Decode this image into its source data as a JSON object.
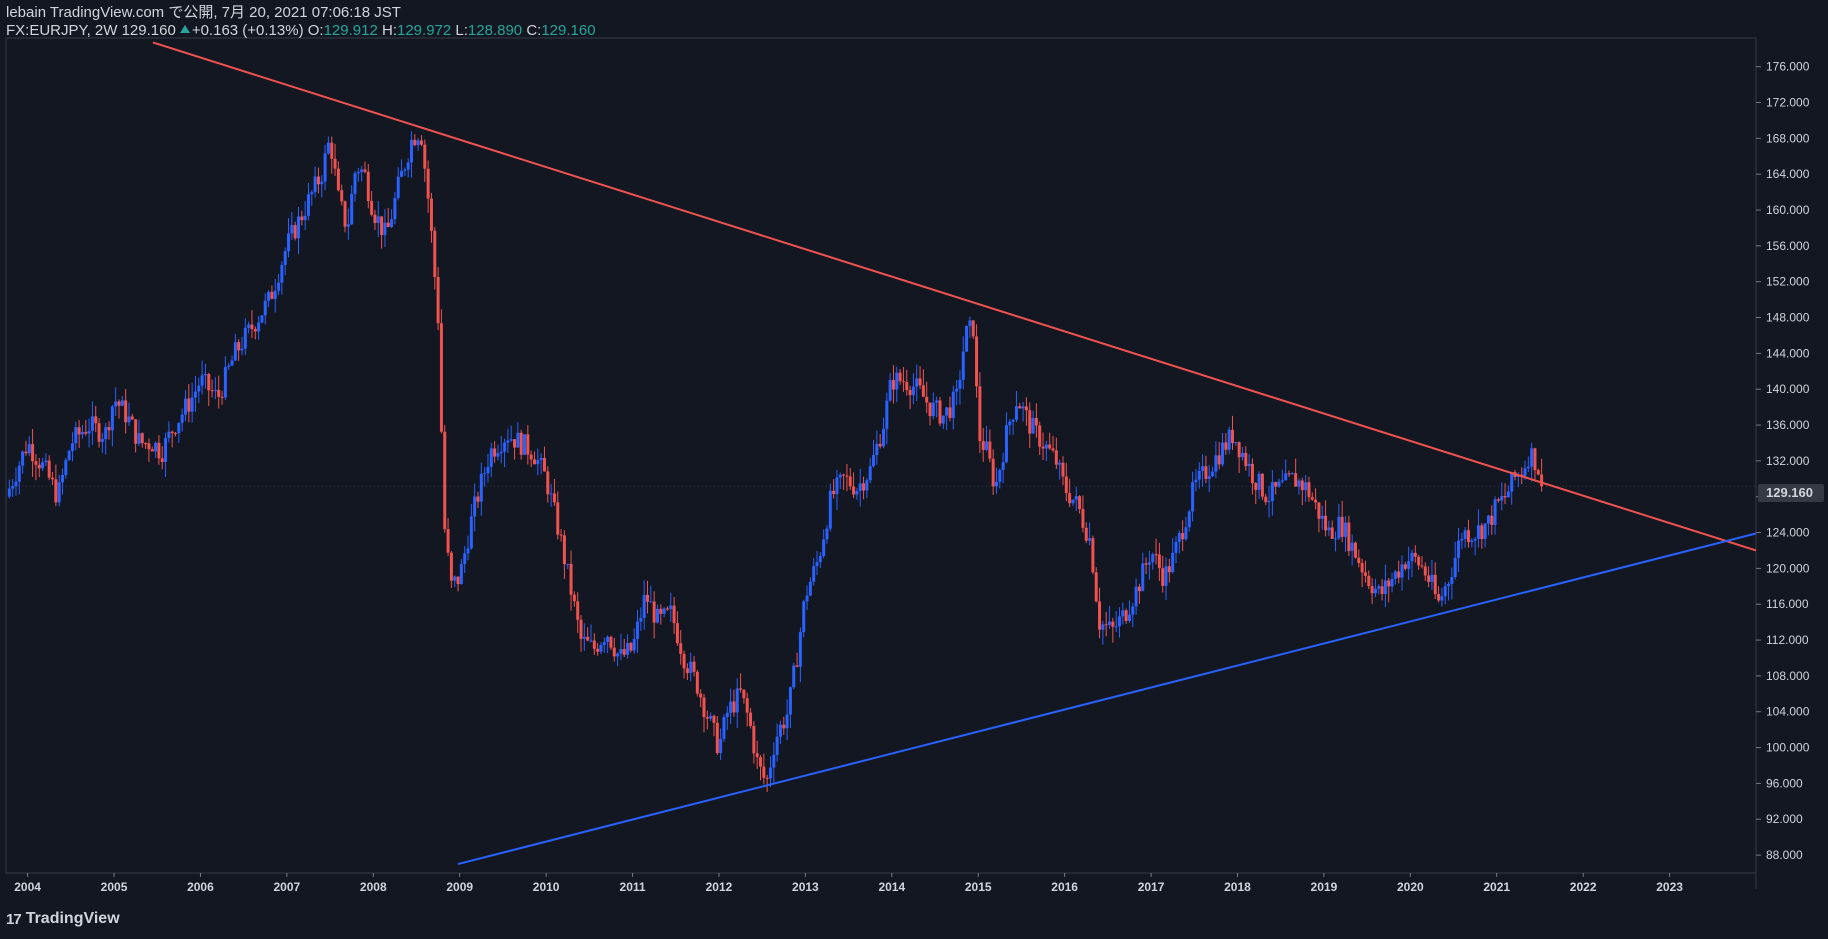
{
  "header": {
    "publisher": "lebain TradingView.com で公開, 7月 20, 2021 07:06:18 JST",
    "symbol": "FX:EURJPY, 2W",
    "last": "129.160",
    "change": "+0.163 (+0.13%)",
    "o_label": "O:",
    "o_value": "129.912",
    "h_label": "H:",
    "h_value": "129.972",
    "l_label": "L:",
    "l_value": "128.890",
    "c_label": "C:",
    "c_value": "129.160"
  },
  "price_badge": "129.160",
  "footer": {
    "logo_text": "TradingView",
    "logo_mark": "17"
  },
  "colors": {
    "bg": "#131722",
    "up": "#2962ff",
    "down": "#ef5350",
    "grid": "#2a2e39",
    "text": "#d1d4dc",
    "axis": "#787b86"
  },
  "chart_data": {
    "type": "candlestick",
    "title": "FX:EURJPY, 2W",
    "x_range": [
      2003.75,
      2024.0
    ],
    "y_range": [
      86.0,
      179.2
    ],
    "x_ticks": [
      2004,
      2005,
      2006,
      2007,
      2008,
      2009,
      2010,
      2011,
      2012,
      2013,
      2014,
      2015,
      2016,
      2017,
      2018,
      2019,
      2020,
      2021,
      2022,
      2023
    ],
    "y_ticks": [
      "88.000",
      "92.000",
      "96.000",
      "100.000",
      "104.000",
      "108.000",
      "112.000",
      "116.000",
      "120.000",
      "124.000",
      "128.000",
      "132.000",
      "136.000",
      "140.000",
      "144.000",
      "148.000",
      "152.000",
      "156.000",
      "160.000",
      "164.000",
      "168.000",
      "172.000",
      "176.000"
    ],
    "current_price": 129.16,
    "closes": [
      [
        2003.75,
        128
      ],
      [
        2004.0,
        134
      ],
      [
        2004.2,
        131
      ],
      [
        2004.35,
        128
      ],
      [
        2004.5,
        134
      ],
      [
        2004.7,
        136
      ],
      [
        2004.9,
        135
      ],
      [
        2005.0,
        139
      ],
      [
        2005.15,
        137
      ],
      [
        2005.3,
        134
      ],
      [
        2005.45,
        134
      ],
      [
        2005.55,
        133
      ],
      [
        2005.7,
        136
      ],
      [
        2005.9,
        139
      ],
      [
        2006.0,
        141
      ],
      [
        2006.2,
        139
      ],
      [
        2006.4,
        144
      ],
      [
        2006.6,
        147
      ],
      [
        2006.8,
        150
      ],
      [
        2007.0,
        156
      ],
      [
        2007.2,
        160
      ],
      [
        2007.4,
        164
      ],
      [
        2007.5,
        168
      ],
      [
        2007.6,
        161
      ],
      [
        2007.7,
        158
      ],
      [
        2007.8,
        165
      ],
      [
        2007.9,
        164
      ],
      [
        2008.0,
        160
      ],
      [
        2008.15,
        157
      ],
      [
        2008.3,
        163
      ],
      [
        2008.45,
        168
      ],
      [
        2008.55,
        169
      ],
      [
        2008.65,
        160
      ],
      [
        2008.75,
        148
      ],
      [
        2008.82,
        125
      ],
      [
        2008.9,
        118
      ],
      [
        2009.0,
        119
      ],
      [
        2009.15,
        126
      ],
      [
        2009.35,
        133
      ],
      [
        2009.55,
        135
      ],
      [
        2009.7,
        134
      ],
      [
        2009.85,
        133
      ],
      [
        2010.0,
        130
      ],
      [
        2010.15,
        124
      ],
      [
        2010.3,
        117
      ],
      [
        2010.4,
        112
      ],
      [
        2010.55,
        111
      ],
      [
        2010.7,
        113
      ],
      [
        2010.85,
        110
      ],
      [
        2011.0,
        111
      ],
      [
        2011.15,
        117
      ],
      [
        2011.3,
        114
      ],
      [
        2011.45,
        115
      ],
      [
        2011.6,
        110
      ],
      [
        2011.75,
        107
      ],
      [
        2011.85,
        104
      ],
      [
        2012.0,
        100
      ],
      [
        2012.1,
        104
      ],
      [
        2012.25,
        106
      ],
      [
        2012.35,
        103
      ],
      [
        2012.45,
        98
      ],
      [
        2012.55,
        96
      ],
      [
        2012.65,
        101
      ],
      [
        2012.8,
        104
      ],
      [
        2012.9,
        110
      ],
      [
        2013.0,
        117
      ],
      [
        2013.15,
        121
      ],
      [
        2013.3,
        128
      ],
      [
        2013.45,
        130
      ],
      [
        2013.6,
        129
      ],
      [
        2013.75,
        131
      ],
      [
        2013.9,
        136
      ],
      [
        2014.0,
        141
      ],
      [
        2014.15,
        141
      ],
      [
        2014.3,
        140
      ],
      [
        2014.45,
        138
      ],
      [
        2014.6,
        137
      ],
      [
        2014.75,
        139
      ],
      [
        2014.85,
        146
      ],
      [
        2014.95,
        147
      ],
      [
        2015.0,
        135
      ],
      [
        2015.1,
        133
      ],
      [
        2015.2,
        129
      ],
      [
        2015.35,
        136
      ],
      [
        2015.45,
        139
      ],
      [
        2015.6,
        136
      ],
      [
        2015.75,
        134
      ],
      [
        2015.9,
        132
      ],
      [
        2016.0,
        129
      ],
      [
        2016.15,
        127
      ],
      [
        2016.3,
        123
      ],
      [
        2016.4,
        114
      ],
      [
        2016.55,
        113
      ],
      [
        2016.7,
        115
      ],
      [
        2016.85,
        118
      ],
      [
        2017.0,
        122
      ],
      [
        2017.15,
        119
      ],
      [
        2017.25,
        121
      ],
      [
        2017.35,
        124
      ],
      [
        2017.5,
        129
      ],
      [
        2017.65,
        131
      ],
      [
        2017.8,
        133
      ],
      [
        2017.95,
        135
      ],
      [
        2018.05,
        133
      ],
      [
        2018.2,
        130
      ],
      [
        2018.35,
        128
      ],
      [
        2018.5,
        129
      ],
      [
        2018.65,
        130
      ],
      [
        2018.8,
        129
      ],
      [
        2018.95,
        126
      ],
      [
        2019.05,
        124
      ],
      [
        2019.2,
        125
      ],
      [
        2019.35,
        122
      ],
      [
        2019.5,
        119
      ],
      [
        2019.65,
        117
      ],
      [
        2019.8,
        119
      ],
      [
        2019.95,
        121
      ],
      [
        2020.05,
        121
      ],
      [
        2020.15,
        120
      ],
      [
        2020.25,
        118
      ],
      [
        2020.32,
        116
      ],
      [
        2020.45,
        119
      ],
      [
        2020.6,
        124
      ],
      [
        2020.75,
        124
      ],
      [
        2020.9,
        125
      ],
      [
        2021.0,
        127
      ],
      [
        2021.1,
        128
      ],
      [
        2021.2,
        130
      ],
      [
        2021.3,
        131
      ],
      [
        2021.38,
        133
      ],
      [
        2021.45,
        132
      ],
      [
        2021.52,
        130
      ],
      [
        2021.55,
        129.16
      ]
    ],
    "trendlines": [
      {
        "name": "resistance",
        "color": "#ef5350",
        "points": [
          [
            2005.45,
            178.7
          ],
          [
            2024.0,
            122.0
          ]
        ]
      },
      {
        "name": "support",
        "color": "#2962ff",
        "points": [
          [
            2008.98,
            87.0
          ],
          [
            2024.0,
            123.9
          ]
        ]
      }
    ]
  }
}
